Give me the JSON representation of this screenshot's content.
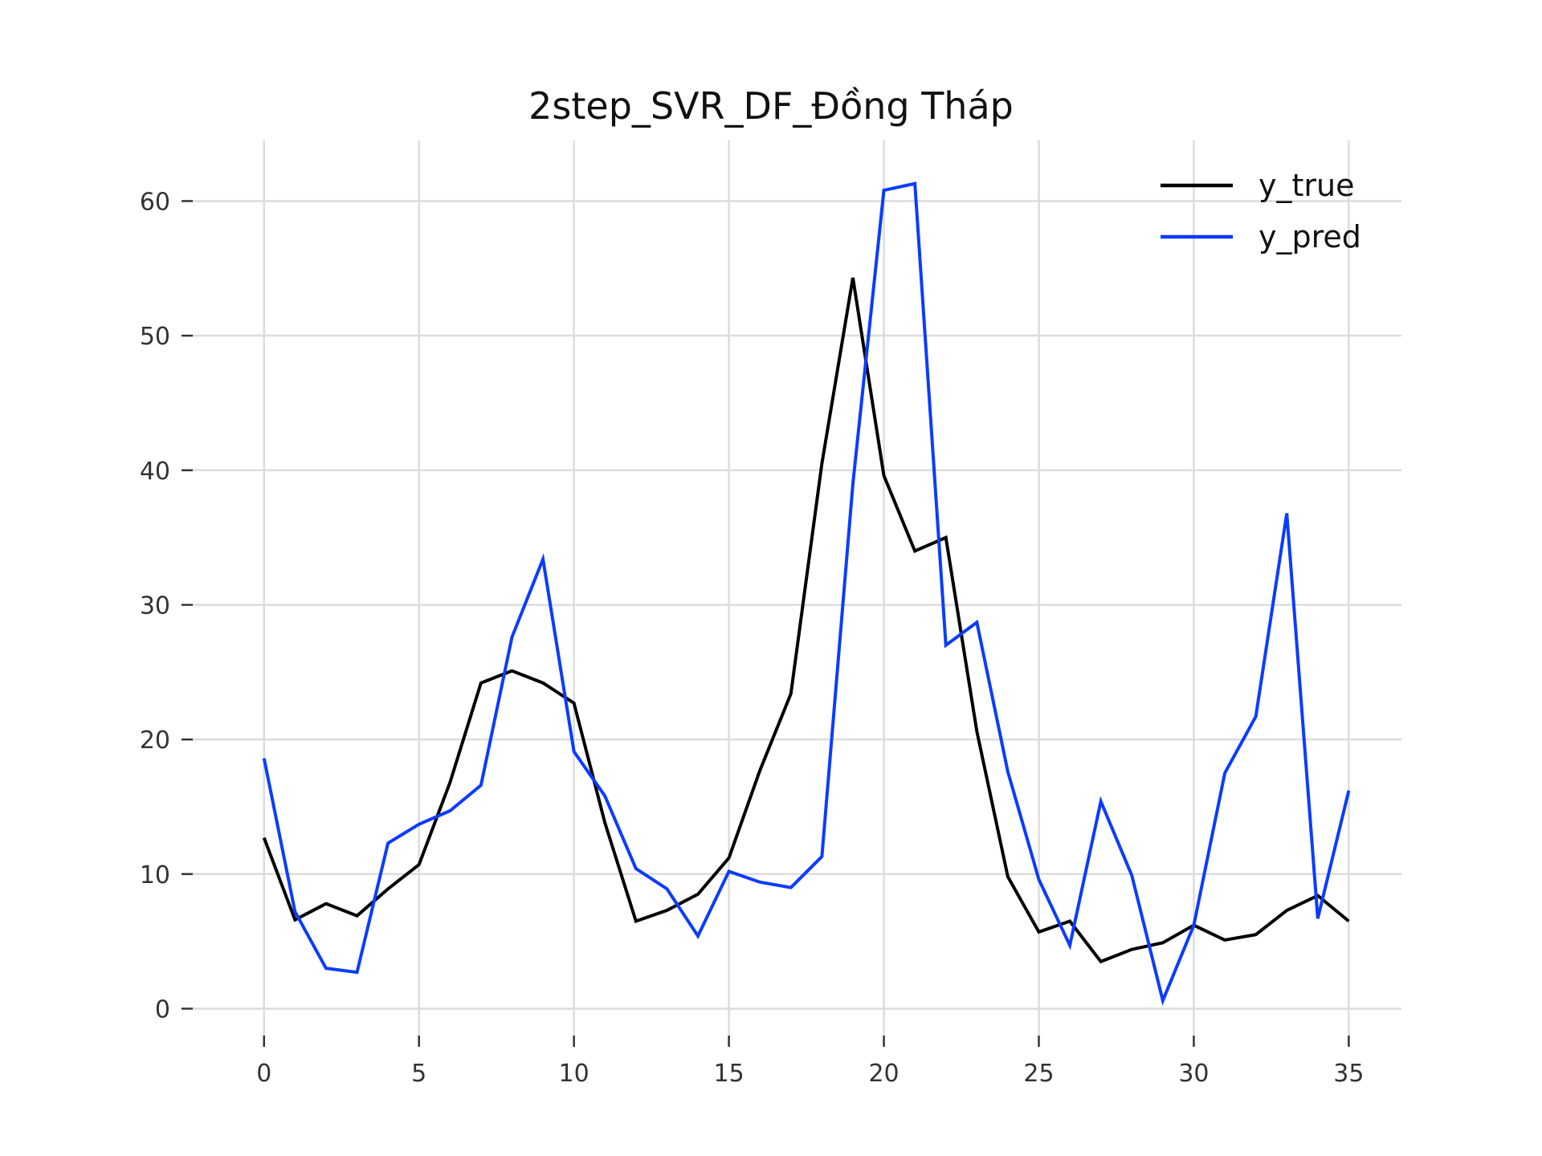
{
  "chart_data": {
    "type": "line",
    "title": "2step_SVR_DF_Đồng Tháp",
    "xlabel": "",
    "ylabel": "",
    "x": [
      0,
      1,
      2,
      3,
      4,
      5,
      6,
      7,
      8,
      9,
      10,
      11,
      12,
      13,
      14,
      15,
      16,
      17,
      18,
      19,
      20,
      21,
      22,
      23,
      24,
      25,
      26,
      27,
      28,
      29,
      30,
      31,
      32,
      33,
      34,
      35
    ],
    "xlim": [
      -2.3,
      36.7
    ],
    "ylim": [
      -2,
      64.5
    ],
    "xticks": [
      0,
      5,
      10,
      15,
      20,
      25,
      30,
      35
    ],
    "yticks": [
      0,
      10,
      20,
      30,
      40,
      50,
      60
    ],
    "xtick_labels": [
      "0",
      "5",
      "10",
      "15",
      "20",
      "25",
      "30",
      "35"
    ],
    "ytick_labels": [
      "0",
      "10",
      "20",
      "30",
      "40",
      "50",
      "60"
    ],
    "grid": true,
    "legend_position": "top-right",
    "series": [
      {
        "name": "y_true",
        "color": "#000000",
        "values": [
          12.7,
          6.6,
          7.8,
          6.9,
          8.9,
          10.7,
          16.8,
          24.2,
          25.1,
          24.2,
          22.7,
          13.8,
          6.5,
          7.3,
          8.5,
          11.2,
          17.7,
          23.4,
          40.5,
          54.3,
          39.6,
          34.0,
          35.0,
          20.6,
          9.8,
          5.7,
          6.5,
          3.5,
          4.4,
          4.9,
          6.2,
          5.1,
          5.5,
          7.3,
          8.4,
          6.5
        ]
      },
      {
        "name": "y_pred",
        "color": "#0b3cff",
        "values": [
          18.6,
          7.2,
          3.0,
          2.7,
          12.3,
          13.7,
          14.7,
          16.6,
          27.6,
          33.4,
          19.1,
          15.8,
          10.4,
          8.9,
          5.4,
          10.2,
          9.4,
          9.0,
          11.3,
          39.0,
          60.8,
          61.3,
          27.0,
          28.7,
          17.6,
          9.6,
          4.7,
          15.4,
          9.9,
          0.6,
          6.2,
          17.5,
          21.7,
          36.8,
          6.7,
          16.2
        ]
      }
    ]
  }
}
